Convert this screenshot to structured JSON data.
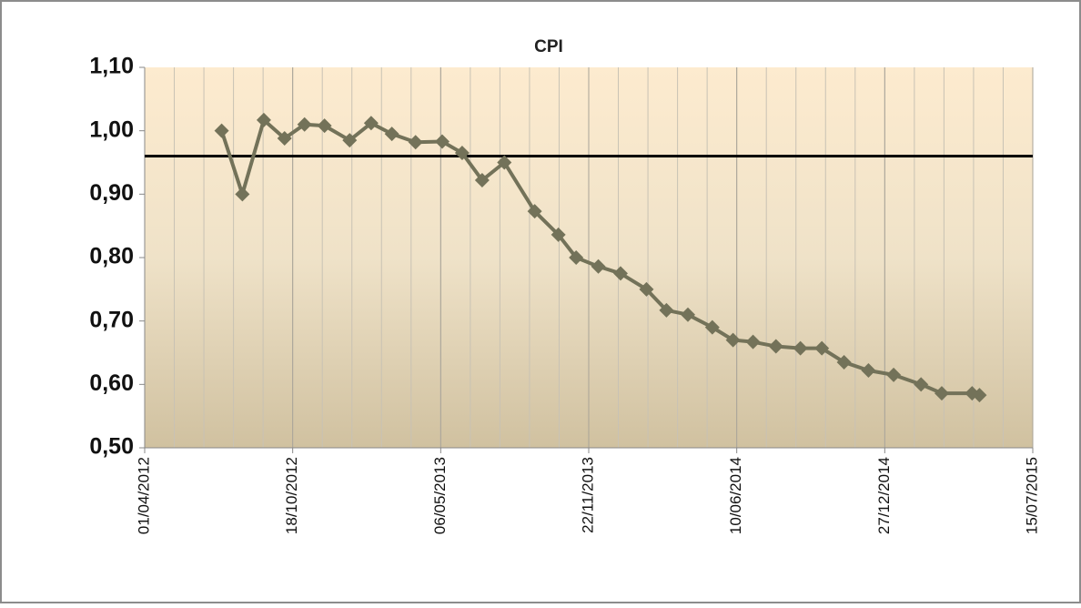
{
  "chart_data": {
    "type": "line",
    "title": "CPI",
    "x": [
      "2012-07-14",
      "2012-08-11",
      "2012-09-09",
      "2012-10-07",
      "2012-11-03",
      "2012-11-30",
      "2013-01-03",
      "2013-02-01",
      "2013-03-01",
      "2013-04-02",
      "2013-05-08",
      "2013-06-04",
      "2013-07-01",
      "2013-07-31",
      "2013-09-10",
      "2013-10-12",
      "2013-11-05",
      "2013-12-05",
      "2014-01-04",
      "2014-02-08",
      "2014-03-07",
      "2014-04-05",
      "2014-05-08",
      "2014-06-05",
      "2014-07-02",
      "2014-08-02",
      "2014-09-04",
      "2014-10-03",
      "2014-11-02",
      "2014-12-05",
      "2015-01-08",
      "2015-02-14",
      "2015-03-14",
      "2015-04-24",
      "2015-05-04"
    ],
    "series": [
      {
        "name": "CPI",
        "color": "#737259",
        "values": [
          1.0,
          0.9,
          1.017,
          0.988,
          1.01,
          1.008,
          0.985,
          1.012,
          0.995,
          0.982,
          0.983,
          0.965,
          0.922,
          0.95,
          0.873,
          0.836,
          0.8,
          0.786,
          0.775,
          0.75,
          0.717,
          0.71,
          0.69,
          0.67,
          0.667,
          0.66,
          0.657,
          0.657,
          0.635,
          0.622,
          0.615,
          0.6,
          0.586,
          0.586,
          0.583
        ]
      }
    ],
    "reference_line": 0.96,
    "xlim": [
      "2012-04-01",
      "2015-07-15"
    ],
    "xticks": [
      {
        "value": "2012-04-01",
        "label": "01/04/2012"
      },
      {
        "value": "2012-10-18",
        "label": "18/10/2012"
      },
      {
        "value": "2013-05-06",
        "label": "06/05/2013"
      },
      {
        "value": "2013-11-22",
        "label": "22/11/2013"
      },
      {
        "value": "2014-06-10",
        "label": "10/06/2014"
      },
      {
        "value": "2014-12-27",
        "label": "27/12/2014"
      },
      {
        "value": "2015-07-15",
        "label": "15/07/2015"
      }
    ],
    "x_minor_step_days": 40,
    "ylim": [
      0.5,
      1.1
    ],
    "yticks": [
      {
        "value": 0.5,
        "label": "0,50"
      },
      {
        "value": 0.6,
        "label": "0,60"
      },
      {
        "value": 0.7,
        "label": "0,70"
      },
      {
        "value": 0.8,
        "label": "0,80"
      },
      {
        "value": 0.9,
        "label": "0,90"
      },
      {
        "value": 1.0,
        "label": "1,00"
      },
      {
        "value": 1.1,
        "label": "1,10"
      }
    ],
    "grid": true
  }
}
